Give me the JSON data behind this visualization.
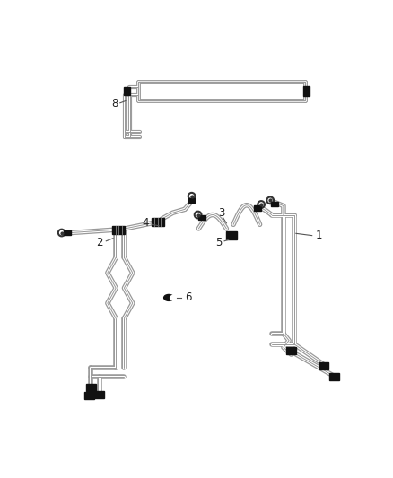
{
  "bg": "#ffffff",
  "lc": "#999999",
  "dc": "#333333",
  "cc": "#111111",
  "lbl": "#222222",
  "fs": 8.5,
  "lw_outer": 4.5,
  "lw_white": 2.5,
  "lw_inner": 0.7
}
